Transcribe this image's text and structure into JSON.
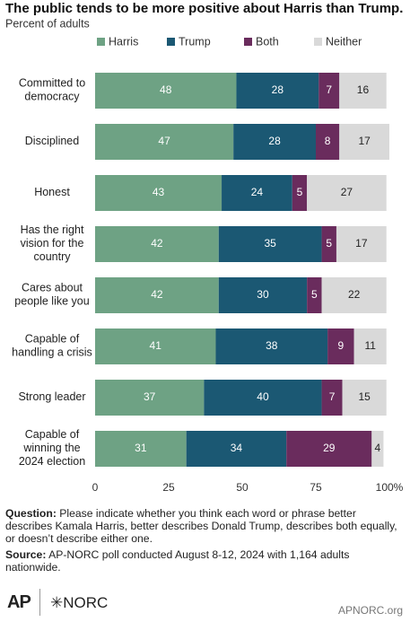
{
  "chart_data": {
    "type": "stacked-bar-horizontal",
    "title": "The public tends to be more positive about Harris than Trump.",
    "subtitle": "Percent of adults",
    "categories": [
      "Committed to\ndemocracy",
      "Disciplined",
      "Honest",
      "Has the right\nvision for the\ncountry",
      "Cares about\npeople like you",
      "Capable of\nhandling a crisis",
      "Strong leader",
      "Capable of\nwinning the\n2024 election"
    ],
    "series": [
      {
        "name": "Harris",
        "color": "#6ea284",
        "values": [
          48,
          47,
          43,
          42,
          42,
          41,
          37,
          31
        ]
      },
      {
        "name": "Trump",
        "color": "#1b5873",
        "values": [
          28,
          28,
          24,
          35,
          30,
          38,
          40,
          34
        ]
      },
      {
        "name": "Both",
        "color": "#6a2c5d",
        "values": [
          7,
          8,
          5,
          5,
          5,
          9,
          7,
          29
        ]
      },
      {
        "name": "Neither",
        "color": "#d9d9d9",
        "values": [
          16,
          17,
          27,
          17,
          22,
          11,
          15,
          4
        ]
      }
    ],
    "xlim": [
      0,
      100
    ],
    "xticks": [
      0,
      25,
      50,
      75,
      {
        "value": 100,
        "label": "100%"
      }
    ]
  },
  "footer": {
    "question_label": "Question:",
    "question": "Please indicate whether you think each word or phrase better describes Kamala Harris, better describes Donald Trump, describes both equally, or doesn’t describe either one.",
    "source_label": "Source:",
    "source": "AP-NORC poll conducted August 8-12, 2024 with 1,164 adults nationwide.",
    "logo_ap": "AP",
    "logo_norc": "NORC",
    "website": "APNORC.org"
  }
}
